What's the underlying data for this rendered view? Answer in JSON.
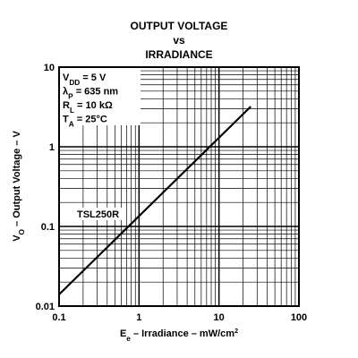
{
  "chart_data": {
    "type": "line",
    "title": [
      "OUTPUT VOLTAGE",
      "vs",
      "IRRADIANCE"
    ],
    "xlabel": [
      {
        "text": "E"
      },
      {
        "text": "e",
        "sub": true
      },
      {
        "text": " – Irradiance – mW/cm"
      },
      {
        "text": "2",
        "sup": true
      }
    ],
    "ylabel": [
      {
        "text": "V"
      },
      {
        "text": "O",
        "sub": true
      },
      {
        "text": " – Output Voltage – V"
      }
    ],
    "annotation_box": [
      [
        {
          "text": "V"
        },
        {
          "text": "DD",
          "sub": true
        },
        {
          "text": " = 5 V"
        }
      ],
      [
        {
          "text": "λ"
        },
        {
          "text": "P",
          "sub": true
        },
        {
          "text": " = 635 nm"
        }
      ],
      [
        {
          "text": "R"
        },
        {
          "text": "L",
          "sub": true
        },
        {
          "text": " = 10 kΩ"
        }
      ],
      [
        {
          "text": "T"
        },
        {
          "text": "A",
          "sub": true
        },
        {
          "text": " = 25°C"
        }
      ]
    ],
    "log_x": true,
    "log_y": true,
    "xlim": [
      0.1,
      100
    ],
    "ylim": [
      0.01,
      10
    ],
    "xticks": [
      0.1,
      1,
      10,
      100
    ],
    "yticks": [
      0.01,
      0.1,
      1,
      10
    ],
    "xminor": [
      0.2,
      0.3,
      0.4,
      0.5,
      0.6,
      0.7,
      0.8,
      0.9,
      2,
      3,
      4,
      5,
      6,
      7,
      8,
      9,
      20,
      30,
      40,
      50,
      60,
      70,
      80,
      90
    ],
    "yminor": [
      0.02,
      0.03,
      0.04,
      0.05,
      0.06,
      0.07,
      0.08,
      0.09,
      0.2,
      0.3,
      0.4,
      0.5,
      0.6,
      0.7,
      0.8,
      0.9,
      2,
      3,
      4,
      5,
      6,
      7,
      8,
      9
    ],
    "grid": true,
    "series": [
      {
        "name": "TSL250R",
        "color": "#000000",
        "x": [
          0.1,
          25
        ],
        "values": [
          0.014,
          3.2
        ]
      }
    ]
  }
}
